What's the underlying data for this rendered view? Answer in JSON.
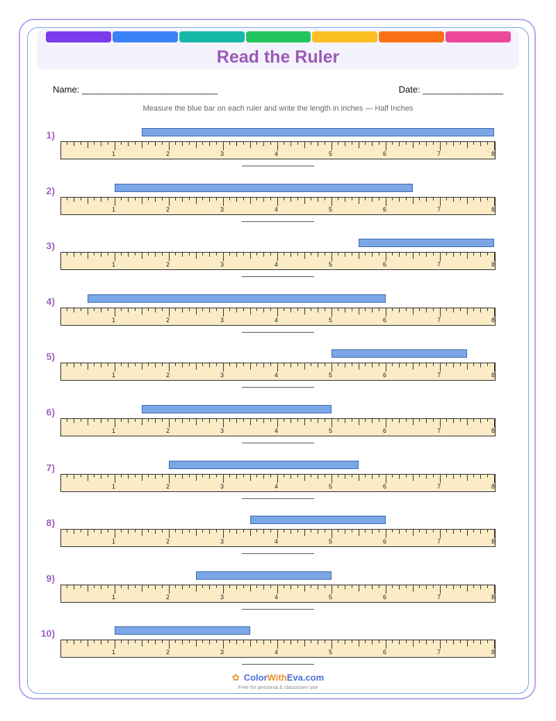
{
  "header": {
    "title": "Read the Ruler",
    "strip_colors": [
      "#7c3aed",
      "#3b82f6",
      "#14b8a6",
      "#22c55e",
      "#fbbf24",
      "#f97316",
      "#ec4899"
    ]
  },
  "form": {
    "name_label": "Name: ___________________________",
    "date_label": "Date: ________________"
  },
  "instructions": "Measure the blue bar on each ruler and write the length in inches — Half Inches",
  "ruler": {
    "length_inches": 8,
    "labels": [
      "1",
      "2",
      "3",
      "4",
      "5",
      "6",
      "7",
      "8"
    ],
    "fill_color": "#fbecc6"
  },
  "problems": [
    {
      "label": "1)",
      "start": 1.5,
      "end": 8.0
    },
    {
      "label": "2)",
      "start": 1.0,
      "end": 6.5
    },
    {
      "label": "3)",
      "start": 5.5,
      "end": 8.0
    },
    {
      "label": "4)",
      "start": 0.5,
      "end": 6.0
    },
    {
      "label": "5)",
      "start": 5.0,
      "end": 7.5
    },
    {
      "label": "6)",
      "start": 1.5,
      "end": 5.0
    },
    {
      "label": "7)",
      "start": 2.0,
      "end": 5.5
    },
    {
      "label": "8)",
      "start": 3.5,
      "end": 6.0
    },
    {
      "label": "9)",
      "start": 2.5,
      "end": 5.0
    },
    {
      "label": "10)",
      "start": 1.0,
      "end": 3.5
    }
  ],
  "footer": {
    "brand_part1": "Color",
    "brand_part2": "With",
    "brand_part3": "Eva.com",
    "tagline": "Free for personal & classroom use",
    "icon": "palette-icon"
  }
}
